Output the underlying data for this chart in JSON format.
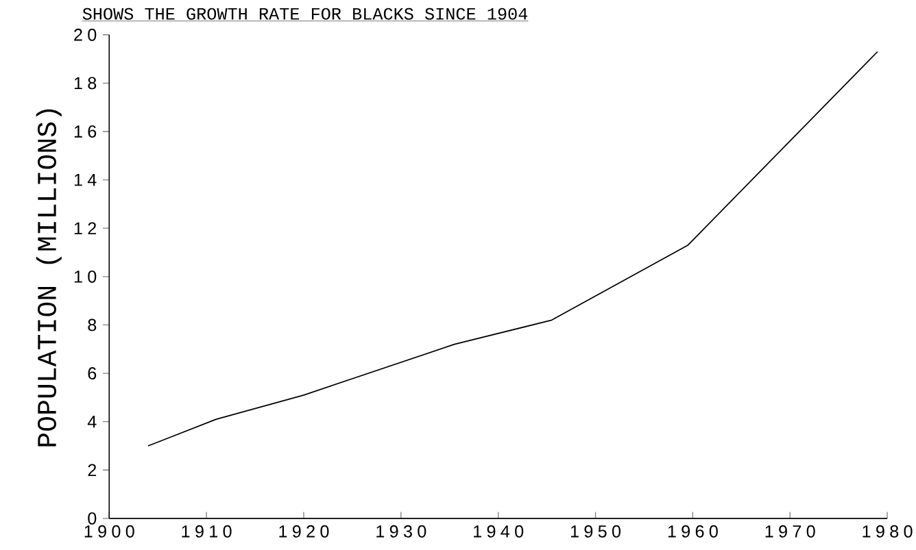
{
  "chart_data": {
    "type": "line",
    "title": "SHOWS THE GROWTH RATE FOR BLACKS SINCE 1904",
    "ylabel": "POPULATION (MILLIONS)",
    "x": [
      1904,
      1911,
      1920,
      1935.5,
      1945.5,
      1959.5,
      1979
    ],
    "series": [
      {
        "color": "#000000",
        "values": [
          3,
          4.1,
          5.1,
          7.2,
          8.2,
          11.3,
          19.3
        ]
      }
    ],
    "xlim": [
      1900,
      1980
    ],
    "xticks": [
      1900,
      1910,
      1920,
      1930,
      1940,
      1950,
      1960,
      1970,
      1980
    ],
    "ylim": [
      0,
      20
    ],
    "yticks": [
      0,
      2,
      4,
      6,
      8,
      10,
      12,
      14,
      16,
      18,
      20
    ],
    "grid": false,
    "marker": "none",
    "line_style": "solid"
  }
}
